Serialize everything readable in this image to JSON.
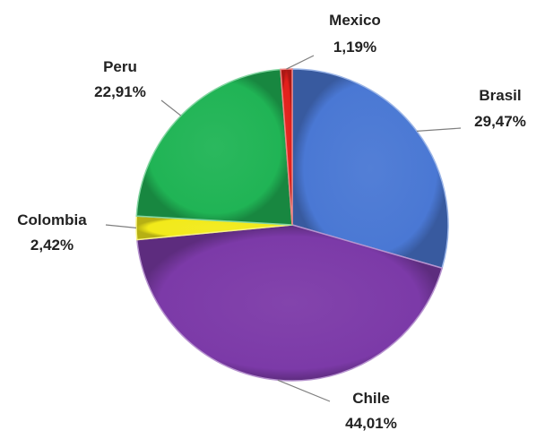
{
  "chart_data": {
    "type": "pie",
    "title": "",
    "categories": [
      "Brasil",
      "Chile",
      "Colombia",
      "Peru",
      "Mexico"
    ],
    "values": [
      29.47,
      44.01,
      2.42,
      22.91,
      1.19
    ],
    "value_labels": [
      "29,47%",
      "44,01%",
      "2,42%",
      "22,91%",
      "1,19%"
    ],
    "colors": [
      "#4a78d4",
      "#7c3aa8",
      "#f2ea1a",
      "#20b455",
      "#e3201b"
    ],
    "start_angle_deg": 0,
    "direction": "clockwise",
    "legend": "none",
    "data_labels": "outside-with-leader-lines"
  }
}
